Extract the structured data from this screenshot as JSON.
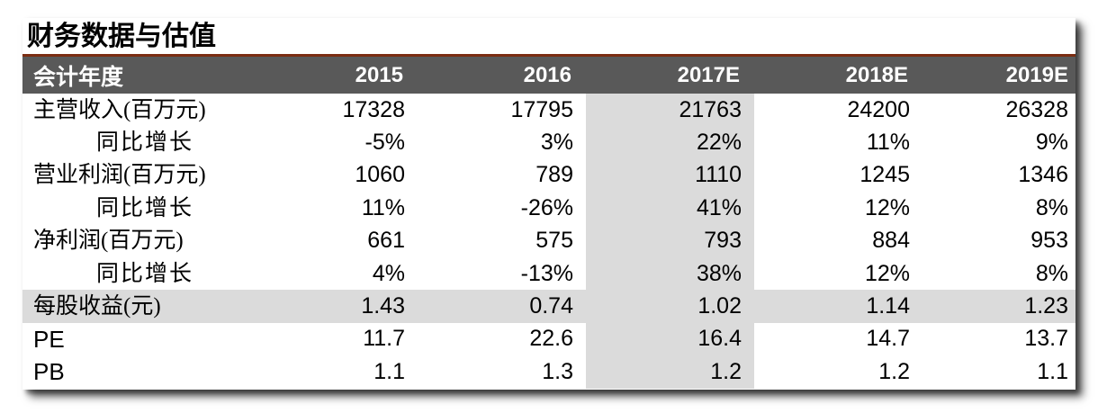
{
  "title": "财务数据与估值",
  "colors": {
    "accent_rule": "#7b2d12",
    "header_bg": "#595959",
    "header_text": "#ffffff",
    "stripe_bg": "#dbdbdb",
    "body_text": "#000000"
  },
  "table": {
    "header": {
      "label": "会计年度",
      "years": [
        "2015",
        "2016",
        "2017E",
        "2018E",
        "2019E"
      ]
    },
    "highlight_year": "2017E",
    "highlight_col_index": 2,
    "rows": [
      {
        "label": "主营收入(百万元)",
        "indent": false,
        "highlight": false,
        "values": [
          "17328",
          "17795",
          "21763",
          "24200",
          "26328"
        ]
      },
      {
        "label": "同比增长",
        "indent": true,
        "highlight": false,
        "values": [
          "-5%",
          "3%",
          "22%",
          "11%",
          "9%"
        ]
      },
      {
        "label": "营业利润(百万元)",
        "indent": false,
        "highlight": false,
        "values": [
          "1060",
          "789",
          "1110",
          "1245",
          "1346"
        ]
      },
      {
        "label": "同比增长",
        "indent": true,
        "highlight": false,
        "values": [
          "11%",
          "-26%",
          "41%",
          "12%",
          "8%"
        ]
      },
      {
        "label": "净利润(百万元)",
        "indent": false,
        "highlight": false,
        "values": [
          "661",
          "575",
          "793",
          "884",
          "953"
        ]
      },
      {
        "label": "同比增长",
        "indent": true,
        "highlight": false,
        "values": [
          "4%",
          "-13%",
          "38%",
          "12%",
          "8%"
        ]
      },
      {
        "label": "每股收益(元)",
        "indent": false,
        "highlight": true,
        "values": [
          "1.43",
          "0.74",
          "1.02",
          "1.14",
          "1.23"
        ]
      },
      {
        "label": "PE",
        "indent": false,
        "highlight": false,
        "values": [
          "11.7",
          "22.6",
          "16.4",
          "14.7",
          "13.7"
        ]
      },
      {
        "label": "PB",
        "indent": false,
        "highlight": false,
        "values": [
          "1.1",
          "1.3",
          "1.2",
          "1.2",
          "1.1"
        ]
      }
    ]
  }
}
